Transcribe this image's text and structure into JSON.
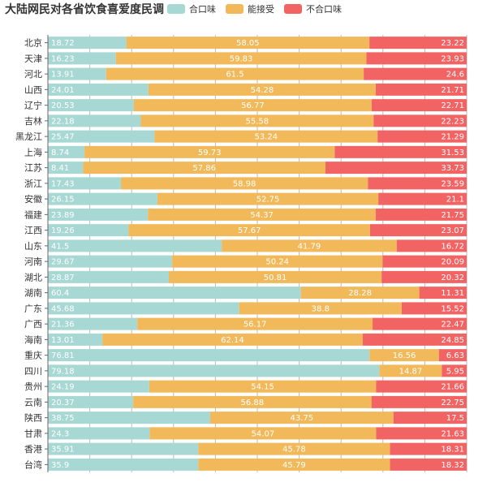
{
  "title": "大陆网民对各省饮食喜爱度民调",
  "colors": {
    "series_1": "#a8d8d4",
    "series_2": "#f2b95a",
    "series_3": "#f26464",
    "axis": "#666666",
    "grid": "#bbbbbb"
  },
  "chart_data": {
    "type": "bar",
    "orientation": "horizontal",
    "stacked": true,
    "normalized_percent": true,
    "title": "大陆网民对各省饮食喜爱度民调",
    "legend": {
      "position": "top",
      "entries": [
        "合口味",
        "能接受",
        "不合口味"
      ]
    },
    "xlim": [
      0,
      100
    ],
    "grid": true,
    "categories": [
      "北京",
      "天津",
      "河北",
      "山西",
      "辽宁",
      "吉林",
      "黑龙江",
      "上海",
      "江苏",
      "浙江",
      "安徽",
      "福建",
      "江西",
      "山东",
      "河南",
      "湖北",
      "湖南",
      "广东",
      "广西",
      "海南",
      "重庆",
      "四川",
      "贵州",
      "云南",
      "陕西",
      "甘肃",
      "香港",
      "台湾"
    ],
    "series": [
      {
        "name": "合口味",
        "values": [
          18.72,
          16.23,
          13.91,
          24.01,
          20.53,
          22.18,
          25.47,
          8.74,
          8.41,
          17.43,
          26.15,
          23.89,
          19.26,
          41.5,
          29.67,
          28.87,
          60.4,
          45.68,
          21.36,
          13.01,
          76.81,
          79.18,
          24.19,
          20.37,
          38.75,
          24.3,
          35.91,
          35.9
        ]
      },
      {
        "name": "能接受",
        "values": [
          58.05,
          59.83,
          61.5,
          54.28,
          56.77,
          55.58,
          53.24,
          59.73,
          57.86,
          58.98,
          52.75,
          54.37,
          57.67,
          41.79,
          50.24,
          50.81,
          28.28,
          38.8,
          56.17,
          62.14,
          16.56,
          14.87,
          54.15,
          56.88,
          43.75,
          54.07,
          45.78,
          45.79
        ]
      },
      {
        "name": "不合口味",
        "values": [
          23.22,
          23.93,
          24.6,
          21.71,
          22.71,
          22.23,
          21.29,
          31.53,
          33.73,
          23.59,
          21.1,
          21.75,
          23.07,
          16.72,
          20.09,
          20.32,
          11.31,
          15.52,
          22.47,
          24.85,
          6.63,
          5.95,
          21.66,
          22.75,
          17.5,
          21.63,
          18.31,
          18.32
        ]
      }
    ]
  }
}
